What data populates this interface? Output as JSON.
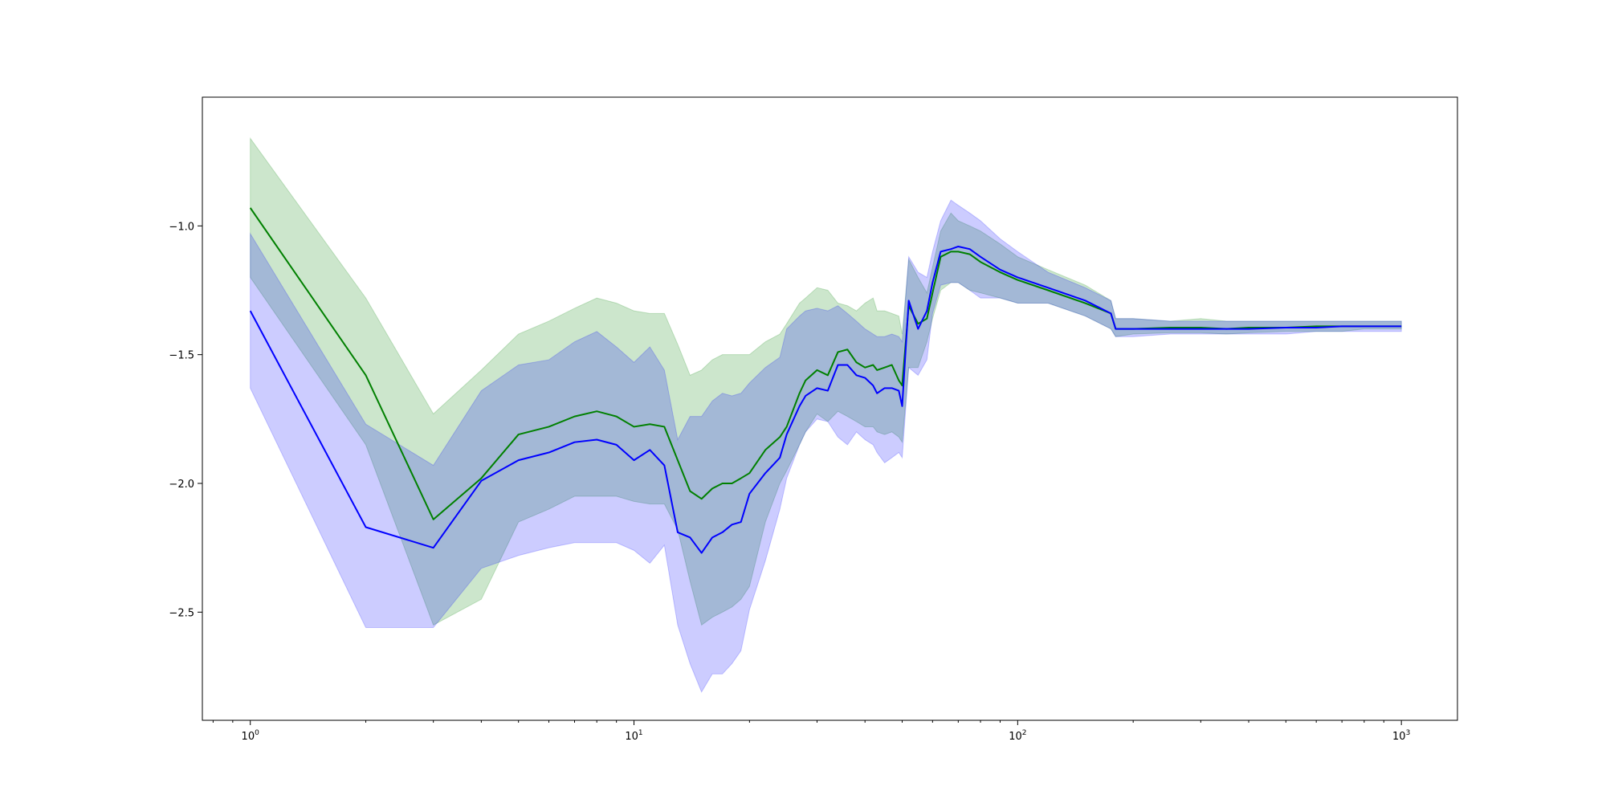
{
  "chart_data": {
    "type": "line",
    "title": "",
    "xlabel": "",
    "ylabel": "",
    "xscale": "log",
    "xlim": [
      0.75,
      1400
    ],
    "ylim": [
      -2.92,
      -0.5
    ],
    "grid": false,
    "x_ticks": [
      {
        "value": 1,
        "base": "10",
        "exp": "0"
      },
      {
        "value": 10,
        "base": "10",
        "exp": "1"
      },
      {
        "value": 100,
        "base": "10",
        "exp": "2"
      },
      {
        "value": 1000,
        "base": "10",
        "exp": "3"
      }
    ],
    "y_ticks": [
      {
        "value": -1.0,
        "label": "−1.0"
      },
      {
        "value": -1.5,
        "label": "−1.5"
      },
      {
        "value": -2.0,
        "label": "−2.0"
      },
      {
        "value": -2.5,
        "label": "−2.5"
      }
    ],
    "series": [
      {
        "color": "#008000",
        "band_color": "#008000",
        "band_opacity": 0.2,
        "x": [
          1,
          2,
          3,
          4,
          5,
          6,
          7,
          8,
          9,
          10,
          11,
          12,
          13,
          14,
          15,
          16,
          17,
          18,
          19,
          20,
          22,
          24,
          25,
          27,
          28,
          30,
          32,
          34,
          36,
          38,
          40,
          42,
          43,
          45,
          47,
          49,
          50,
          52,
          55,
          58,
          60,
          63,
          67,
          70,
          75,
          80,
          90,
          100,
          120,
          150,
          175,
          180,
          200,
          250,
          300,
          350,
          400,
          500,
          600,
          700,
          800,
          900,
          1000
        ],
        "y": [
          -0.93,
          -1.58,
          -2.14,
          -1.98,
          -1.81,
          -1.78,
          -1.74,
          -1.72,
          -1.74,
          -1.78,
          -1.77,
          -1.78,
          -1.91,
          -2.03,
          -2.06,
          -2.02,
          -2.0,
          -2.0,
          -1.98,
          -1.96,
          -1.87,
          -1.82,
          -1.78,
          -1.65,
          -1.6,
          -1.56,
          -1.58,
          -1.49,
          -1.48,
          -1.53,
          -1.55,
          -1.54,
          -1.56,
          -1.55,
          -1.54,
          -1.6,
          -1.62,
          -1.31,
          -1.38,
          -1.36,
          -1.26,
          -1.12,
          -1.1,
          -1.1,
          -1.11,
          -1.14,
          -1.18,
          -1.21,
          -1.25,
          -1.3,
          -1.34,
          -1.4,
          -1.4,
          -1.395,
          -1.395,
          -1.4,
          -1.395,
          -1.395,
          -1.39,
          -1.39,
          -1.39,
          -1.39,
          -1.39
        ],
        "lower": [
          -1.2,
          -1.85,
          -2.55,
          -2.45,
          -2.15,
          -2.1,
          -2.05,
          -2.05,
          -2.05,
          -2.07,
          -2.08,
          -2.08,
          -2.18,
          -2.38,
          -2.55,
          -2.52,
          -2.5,
          -2.48,
          -2.45,
          -2.4,
          -2.15,
          -2.0,
          -1.95,
          -1.85,
          -1.8,
          -1.73,
          -1.76,
          -1.72,
          -1.74,
          -1.76,
          -1.78,
          -1.78,
          -1.8,
          -1.81,
          -1.8,
          -1.82,
          -1.84,
          -1.55,
          -1.55,
          -1.45,
          -1.36,
          -1.25,
          -1.22,
          -1.22,
          -1.25,
          -1.26,
          -1.28,
          -1.3,
          -1.3,
          -1.35,
          -1.4,
          -1.43,
          -1.42,
          -1.415,
          -1.415,
          -1.42,
          -1.415,
          -1.41,
          -1.41,
          -1.41,
          -1.4,
          -1.4,
          -1.4
        ],
        "upper": [
          -0.66,
          -1.28,
          -1.73,
          -1.56,
          -1.42,
          -1.37,
          -1.32,
          -1.28,
          -1.3,
          -1.33,
          -1.34,
          -1.34,
          -1.46,
          -1.58,
          -1.56,
          -1.52,
          -1.5,
          -1.5,
          -1.5,
          -1.5,
          -1.45,
          -1.42,
          -1.38,
          -1.3,
          -1.28,
          -1.24,
          -1.25,
          -1.3,
          -1.31,
          -1.33,
          -1.3,
          -1.28,
          -1.33,
          -1.33,
          -1.34,
          -1.35,
          -1.42,
          -1.13,
          -1.2,
          -1.26,
          -1.16,
          -1.02,
          -0.95,
          -0.98,
          -1.0,
          -1.02,
          -1.07,
          -1.12,
          -1.17,
          -1.23,
          -1.29,
          -1.36,
          -1.36,
          -1.37,
          -1.36,
          -1.37,
          -1.37,
          -1.37,
          -1.37,
          -1.37,
          -1.37,
          -1.37,
          -1.37
        ]
      },
      {
        "color": "#0000ff",
        "band_color": "#0000ff",
        "band_opacity": 0.2,
        "x": [
          1,
          2,
          3,
          4,
          5,
          6,
          7,
          8,
          9,
          10,
          11,
          12,
          13,
          14,
          15,
          16,
          17,
          18,
          19,
          20,
          22,
          24,
          25,
          27,
          28,
          30,
          32,
          34,
          36,
          38,
          40,
          42,
          43,
          45,
          47,
          49,
          50,
          52,
          55,
          58,
          60,
          63,
          67,
          70,
          75,
          80,
          90,
          100,
          120,
          150,
          175,
          180,
          200,
          250,
          300,
          350,
          400,
          500,
          600,
          700,
          800,
          900,
          1000
        ],
        "y": [
          -1.33,
          -2.17,
          -2.25,
          -1.99,
          -1.91,
          -1.88,
          -1.84,
          -1.83,
          -1.85,
          -1.91,
          -1.87,
          -1.93,
          -2.19,
          -2.21,
          -2.27,
          -2.21,
          -2.19,
          -2.16,
          -2.15,
          -2.04,
          -1.96,
          -1.9,
          -1.81,
          -1.7,
          -1.66,
          -1.63,
          -1.64,
          -1.54,
          -1.54,
          -1.58,
          -1.59,
          -1.62,
          -1.65,
          -1.63,
          -1.63,
          -1.64,
          -1.7,
          -1.29,
          -1.4,
          -1.33,
          -1.22,
          -1.1,
          -1.09,
          -1.08,
          -1.09,
          -1.12,
          -1.17,
          -1.2,
          -1.24,
          -1.29,
          -1.34,
          -1.4,
          -1.4,
          -1.4,
          -1.4,
          -1.4,
          -1.4,
          -1.395,
          -1.395,
          -1.39,
          -1.39,
          -1.39,
          -1.39
        ],
        "lower": [
          -1.63,
          -2.56,
          -2.56,
          -2.33,
          -2.28,
          -2.25,
          -2.23,
          -2.23,
          -2.23,
          -2.26,
          -2.31,
          -2.24,
          -2.55,
          -2.7,
          -2.81,
          -2.74,
          -2.74,
          -2.7,
          -2.65,
          -2.49,
          -2.3,
          -2.1,
          -1.98,
          -1.85,
          -1.8,
          -1.75,
          -1.76,
          -1.82,
          -1.85,
          -1.8,
          -1.83,
          -1.85,
          -1.88,
          -1.92,
          -1.9,
          -1.88,
          -1.9,
          -1.55,
          -1.58,
          -1.52,
          -1.34,
          -1.23,
          -1.22,
          -1.22,
          -1.25,
          -1.28,
          -1.28,
          -1.3,
          -1.3,
          -1.35,
          -1.4,
          -1.43,
          -1.43,
          -1.42,
          -1.42,
          -1.42,
          -1.42,
          -1.42,
          -1.41,
          -1.41,
          -1.41,
          -1.41,
          -1.41
        ],
        "upper": [
          -1.03,
          -1.77,
          -1.93,
          -1.64,
          -1.54,
          -1.52,
          -1.45,
          -1.41,
          -1.47,
          -1.53,
          -1.47,
          -1.56,
          -1.83,
          -1.74,
          -1.74,
          -1.68,
          -1.65,
          -1.66,
          -1.65,
          -1.61,
          -1.55,
          -1.51,
          -1.4,
          -1.35,
          -1.33,
          -1.32,
          -1.33,
          -1.31,
          -1.34,
          -1.37,
          -1.4,
          -1.42,
          -1.43,
          -1.43,
          -1.42,
          -1.43,
          -1.45,
          -1.12,
          -1.18,
          -1.2,
          -1.1,
          -0.98,
          -0.9,
          -0.92,
          -0.95,
          -0.98,
          -1.05,
          -1.1,
          -1.18,
          -1.24,
          -1.29,
          -1.36,
          -1.36,
          -1.37,
          -1.37,
          -1.37,
          -1.37,
          -1.37,
          -1.37,
          -1.37,
          -1.37,
          -1.37,
          -1.37
        ]
      }
    ]
  }
}
